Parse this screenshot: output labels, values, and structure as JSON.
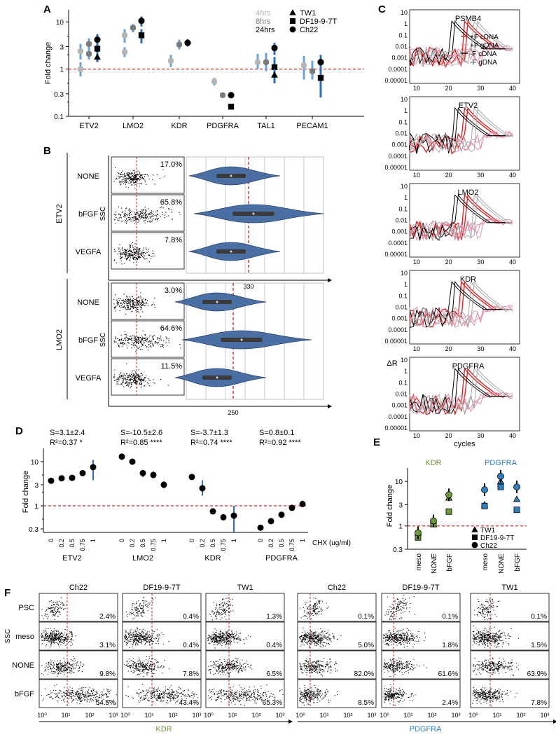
{
  "panels": {
    "A": "A",
    "B": "B",
    "C": "C",
    "D": "D",
    "E": "E",
    "F": "F"
  },
  "colors": {
    "light": "#b4b4b4",
    "mid": "#7a7a7a",
    "dark": "#000000",
    "blue": "#2f6db5",
    "lightblue": "#6aa3dc",
    "red": "#d62728",
    "pink": "#e58fa8",
    "violin": "#4a6fa5",
    "kdr": "#6e9a3a",
    "pdgfra": "#2f7fc1"
  },
  "chart_data": [
    {
      "id": "A",
      "type": "scatter",
      "ylabel": "Fold change",
      "ylim": [
        0.1,
        18
      ],
      "yticks": [
        {
          "v": 0.1,
          "t": "0.1"
        },
        {
          "v": 0.3,
          "t": "0.3"
        },
        {
          "v": 1,
          "t": "1"
        },
        {
          "v": 3,
          "t": "3"
        },
        {
          "v": 10,
          "t": "10"
        }
      ],
      "categories": [
        "ETV2",
        "LMO2",
        "KDR",
        "PDGFRA",
        "TAL1",
        "PECAM1"
      ],
      "time_legend": [
        "4hrs",
        "8hrs",
        "24hrs"
      ],
      "line_legend": [
        {
          "shape": "triangle",
          "label": "TW1"
        },
        {
          "shape": "square",
          "label": "DF19-9-7T"
        },
        {
          "shape": "circle",
          "label": "Ch22"
        }
      ],
      "points": [
        {
          "c": 0,
          "t": 0,
          "v": 2.4,
          "lo": 1.6,
          "hi": 3.4
        },
        {
          "c": 0,
          "t": 0,
          "v": 1.0,
          "lo": 0.7,
          "hi": 1.4
        },
        {
          "c": 0,
          "t": 1,
          "v": 3.4,
          "lo": 2.2,
          "hi": 4.5
        },
        {
          "c": 0,
          "t": 1,
          "v": 2.1,
          "lo": 1.6,
          "hi": 2.7
        },
        {
          "c": 0,
          "t": 2,
          "v": 4.2,
          "lo": 2.6,
          "hi": 5.5
        },
        {
          "c": 0,
          "t": 2,
          "v": 2.7,
          "lo": 2.1,
          "hi": 3.6
        },
        {
          "c": 0,
          "t": 2,
          "v": 1.8,
          "lo": 1.4,
          "hi": 2.2
        },
        {
          "c": 1,
          "t": 0,
          "v": 5.2,
          "lo": 3.6,
          "hi": 7.0
        },
        {
          "c": 1,
          "t": 0,
          "v": 2.3,
          "lo": 1.8,
          "hi": 2.9
        },
        {
          "c": 1,
          "t": 1,
          "v": 7.5,
          "lo": 6.0,
          "hi": 9.0
        },
        {
          "c": 1,
          "t": 2,
          "v": 10.5,
          "lo": 8.0,
          "hi": 13.0
        },
        {
          "c": 1,
          "t": 2,
          "v": 5.2,
          "lo": 3.5,
          "hi": 7.0
        },
        {
          "c": 2,
          "t": 0,
          "v": 1.5,
          "lo": 1.1,
          "hi": 2.0
        },
        {
          "c": 2,
          "t": 1,
          "v": 3.3,
          "lo": 2.6,
          "hi": 4.2
        },
        {
          "c": 2,
          "t": 2,
          "v": 3.6,
          "lo": 3.0,
          "hi": 4.3
        },
        {
          "c": 3,
          "t": 0,
          "v": 0.55,
          "lo": 0.45,
          "hi": 0.65
        },
        {
          "c": 3,
          "t": 1,
          "v": 0.28,
          "lo": 0.25,
          "hi": 0.31
        },
        {
          "c": 3,
          "t": 2,
          "v": 0.28,
          "lo": 0.25,
          "hi": 0.31
        },
        {
          "c": 3,
          "t": 2,
          "v": 0.16,
          "lo": 0.15,
          "hi": 0.18
        },
        {
          "c": 4,
          "t": 0,
          "v": 1.4,
          "lo": 1.0,
          "hi": 2.1
        },
        {
          "c": 4,
          "t": 1,
          "v": 1.4,
          "lo": 0.9,
          "hi": 2.2
        },
        {
          "c": 4,
          "t": 2,
          "v": 2.8,
          "lo": 2.0,
          "hi": 3.6
        },
        {
          "c": 4,
          "t": 2,
          "v": 1.1,
          "lo": 0.6,
          "hi": 1.8
        },
        {
          "c": 4,
          "t": 2,
          "v": 0.75,
          "lo": 0.5,
          "hi": 1.0
        },
        {
          "c": 5,
          "t": 0,
          "v": 1.2,
          "lo": 0.6,
          "hi": 1.9
        },
        {
          "c": 5,
          "t": 1,
          "v": 0.9,
          "lo": 0.6,
          "hi": 1.5
        },
        {
          "c": 5,
          "t": 2,
          "v": 1.4,
          "lo": 0.9,
          "hi": 2.0
        },
        {
          "c": 5,
          "t": 2,
          "v": 0.65,
          "lo": 0.25,
          "hi": 1.1
        }
      ]
    },
    {
      "id": "B",
      "type": "violin",
      "groups": [
        {
          "name": "ETV2",
          "xlabel": "330",
          "rows": [
            {
              "cond": "NONE",
              "pct": "17.0%"
            },
            {
              "cond": "bFGF",
              "pct": "65.8%"
            },
            {
              "cond": "VEGFA",
              "pct": "7.8%"
            }
          ]
        },
        {
          "name": "LMO2",
          "xlabel": "250",
          "rows": [
            {
              "cond": "NONE",
              "pct": "3.0%"
            },
            {
              "cond": "bFGF",
              "pct": "64.6%"
            },
            {
              "cond": "VEGFA",
              "pct": "11.5%"
            }
          ]
        }
      ],
      "ylabel": "SSC"
    },
    {
      "id": "C",
      "type": "line",
      "genes": [
        "PSMB4",
        "ETV2",
        "LMO2",
        "KDR",
        "PDGFRA"
      ],
      "yticks": [
        "10",
        "1",
        "0.1",
        "0.01",
        "0.001",
        "0.0001",
        "0.00001"
      ],
      "xticks": [
        "10",
        "20",
        "30",
        "40"
      ],
      "xlabel": "cycles",
      "ylabel": "ΔR",
      "legend": [
        {
          "label": "+F cDNA",
          "color": "red"
        },
        {
          "label": "+F gDNA",
          "color": "pink"
        },
        {
          "label": "-F cDNA",
          "color": "dark"
        },
        {
          "label": "-F gDNA",
          "color": "light"
        }
      ]
    },
    {
      "id": "D",
      "type": "scatter",
      "ylabel": "Fold change",
      "xlabel": "CHX (ug/ml)",
      "ylim": [
        0.25,
        20
      ],
      "yticks": [
        {
          "v": 0.3,
          "t": "0.3"
        },
        {
          "v": 1,
          "t": "1"
        },
        {
          "v": 3,
          "t": "3"
        },
        {
          "v": 10,
          "t": "10"
        }
      ],
      "doses": [
        "0",
        "0.2",
        "0.5",
        "0.75",
        "1"
      ],
      "groups": [
        {
          "name": "ETV2",
          "stat1": "S=3.1±2.4",
          "stat2": "R²=0.37 *",
          "values": [
            3.7,
            4.2,
            4.3,
            5.5,
            7.5
          ],
          "lo": [
            3.4,
            3.8,
            4.0,
            4.9,
            3.8
          ],
          "hi": [
            4.0,
            4.6,
            4.6,
            6.0,
            11.0
          ]
        },
        {
          "name": "LMO2",
          "stat1": "S=-10.5±2.6",
          "stat2": "R²=0.85 ****",
          "values": [
            13.0,
            10.0,
            5.5,
            5.0,
            3.0
          ],
          "lo": [
            11.0,
            8.5,
            4.5,
            4.2,
            2.5
          ],
          "hi": [
            15.0,
            11.5,
            6.5,
            6.0,
            3.6
          ]
        },
        {
          "name": "KDR",
          "stat1": "S=-3.7±1.3",
          "stat2": "R²=0.74 ****",
          "values": [
            4.5,
            2.5,
            0.75,
            0.55,
            0.6
          ],
          "lo": [
            4.1,
            1.7,
            0.7,
            0.48,
            0.25
          ],
          "hi": [
            4.9,
            3.8,
            0.8,
            0.62,
            1.0
          ]
        },
        {
          "name": "PDGFRA",
          "stat1": "S=0.8±0.1",
          "stat2": "R²=0.92 ****",
          "values": [
            0.32,
            0.45,
            0.63,
            0.9,
            1.1
          ],
          "lo": [
            0.3,
            0.43,
            0.6,
            0.85,
            0.95
          ],
          "hi": [
            0.34,
            0.47,
            0.66,
            0.95,
            1.3
          ]
        }
      ]
    },
    {
      "id": "E",
      "type": "scatter",
      "ylabel": "Fold change",
      "ylim": [
        0.3,
        20
      ],
      "yticks": [
        {
          "v": 0.3,
          "t": "0.3"
        },
        {
          "v": 1,
          "t": "1"
        },
        {
          "v": 3,
          "t": "3"
        },
        {
          "v": 10,
          "t": "10"
        }
      ],
      "titles": [
        {
          "t": "KDR",
          "color": "kdr"
        },
        {
          "t": "PDGFRA",
          "color": "pdgfra"
        }
      ],
      "categories": [
        "meso",
        "NONE",
        "bFGF",
        "meso",
        "NONE",
        "bFGF"
      ],
      "legend": [
        {
          "shape": "triangle",
          "label": "TW1"
        },
        {
          "shape": "square",
          "label": "DF19-9-7T"
        },
        {
          "shape": "circle",
          "label": "Ch22"
        }
      ],
      "points": [
        {
          "c": 0,
          "s": "triangle",
          "v": 0.7,
          "g": 0
        },
        {
          "c": 0,
          "s": "square",
          "v": 0.55,
          "g": 0
        },
        {
          "c": 0,
          "s": "circle",
          "v": 0.7,
          "g": 0
        },
        {
          "c": 1,
          "s": "triangle",
          "v": 1.1,
          "g": 0
        },
        {
          "c": 1,
          "s": "square",
          "v": 1.1,
          "g": 0
        },
        {
          "c": 1,
          "s": "circle",
          "v": 1.3,
          "g": 0
        },
        {
          "c": 2,
          "s": "triangle",
          "v": 4.3,
          "g": 0
        },
        {
          "c": 2,
          "s": "square",
          "v": 2.1,
          "g": 0
        },
        {
          "c": 2,
          "s": "circle",
          "v": 5.0,
          "g": 0
        },
        {
          "c": 3,
          "s": "triangle",
          "v": 3.0,
          "g": 1
        },
        {
          "c": 3,
          "s": "square",
          "v": 2.8,
          "g": 1
        },
        {
          "c": 3,
          "s": "circle",
          "v": 6.5,
          "g": 1
        },
        {
          "c": 4,
          "s": "triangle",
          "v": 10.0,
          "g": 1
        },
        {
          "c": 4,
          "s": "square",
          "v": 7.5,
          "g": 1
        },
        {
          "c": 4,
          "s": "circle",
          "v": 13.0,
          "g": 1
        },
        {
          "c": 5,
          "s": "triangle",
          "v": 4.0,
          "g": 1
        },
        {
          "c": 5,
          "s": "square",
          "v": 2.3,
          "g": 1
        },
        {
          "c": 5,
          "s": "circle",
          "v": 7.5,
          "g": 1
        }
      ]
    },
    {
      "id": "F",
      "type": "scatter",
      "ylabel": "SSC",
      "rows": [
        "PSC",
        "meso",
        "NONE",
        "bFGF"
      ],
      "groups": [
        {
          "marker": "KDR",
          "color": "kdr",
          "cols": [
            "Ch22",
            "DF19-9-7T",
            "TW1"
          ],
          "pct": [
            [
              "2.4%",
              "0.4%",
              "1.3%"
            ],
            [
              "3.1%",
              "0.4%",
              "0.4%"
            ],
            [
              "9.8%",
              "7.8%",
              "6.5%"
            ],
            [
              "54.5%",
              "43.4%",
              "65.3%"
            ]
          ]
        },
        {
          "marker": "PDGFRA",
          "color": "pdgfra",
          "cols": [
            "Ch22",
            "DF19-9-7T",
            "TW1"
          ],
          "pct": [
            [
              "0.1%",
              "0.1%",
              "0.1%"
            ],
            [
              "5.0%",
              "1.8%",
              "1.5%"
            ],
            [
              "82.0%",
              "61.6%",
              "63.9%"
            ],
            [
              "8.5%",
              "2.4%",
              "7.8%"
            ]
          ]
        }
      ],
      "xticks": [
        "10⁰",
        "10¹",
        "10²",
        "10³"
      ]
    }
  ]
}
